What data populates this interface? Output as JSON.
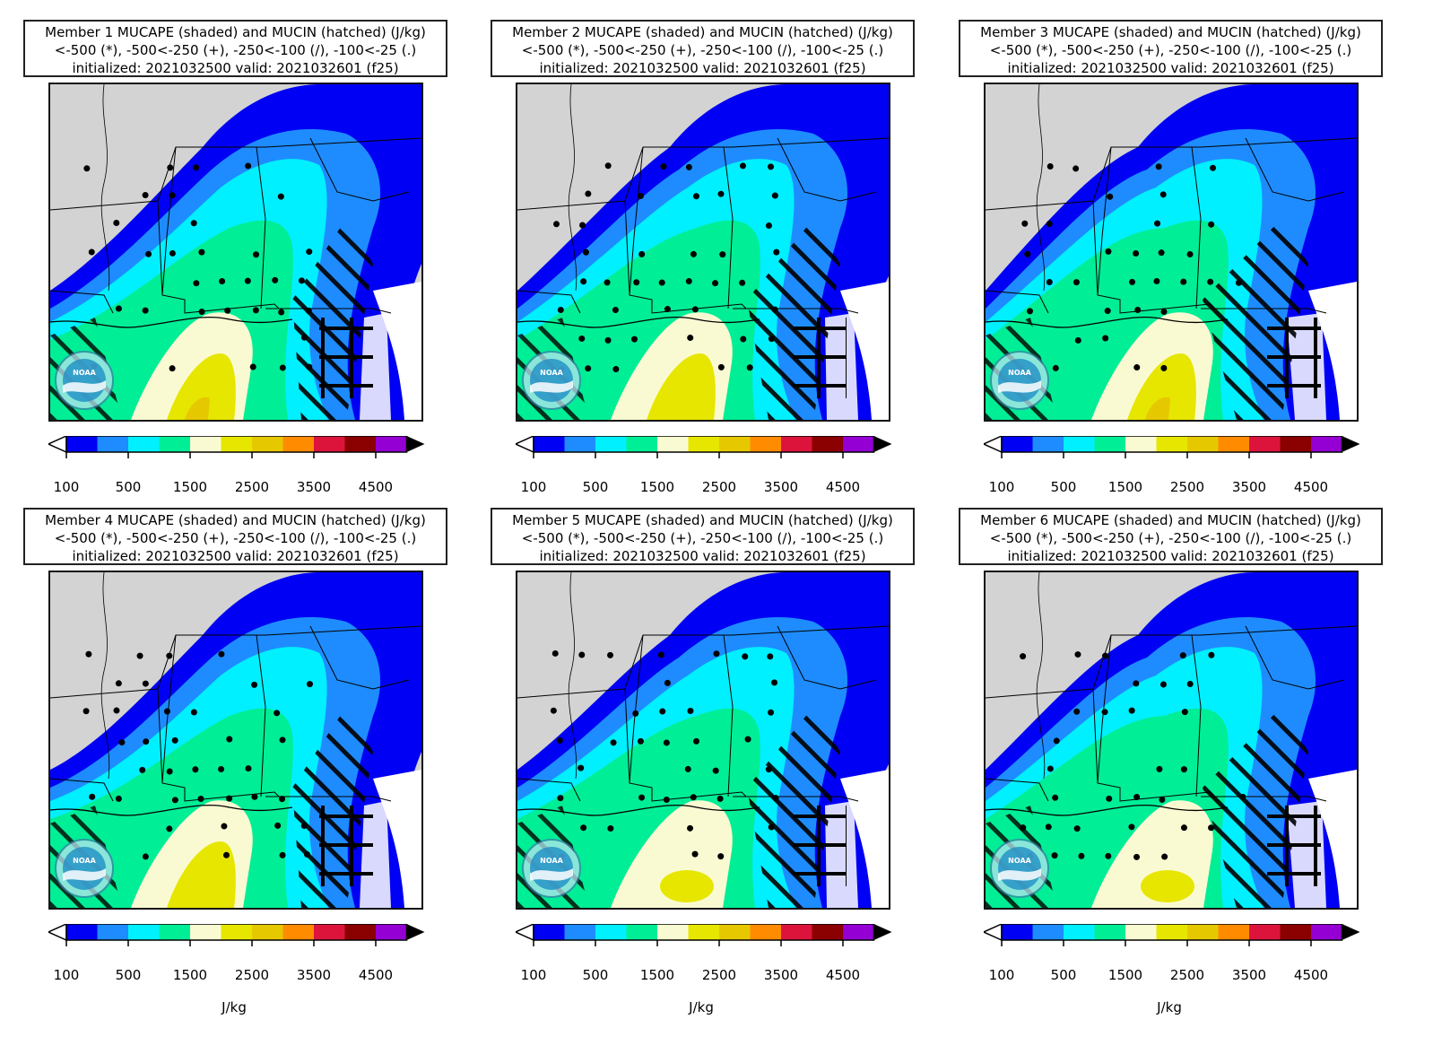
{
  "panels": [
    {
      "member": 1,
      "title_line1": "Member 1 MUCAPE (shaded) and MUCIN (hatched) (J/kg)"
    },
    {
      "member": 2,
      "title_line1": "Member 2 MUCAPE (shaded) and MUCIN (hatched) (J/kg)"
    },
    {
      "member": 3,
      "title_line1": "Member 3 MUCAPE (shaded) and MUCIN (hatched) (J/kg)"
    },
    {
      "member": 4,
      "title_line1": "Member 4 MUCAPE (shaded) and MUCIN (hatched) (J/kg)"
    },
    {
      "member": 5,
      "title_line1": "Member 5 MUCAPE (shaded) and MUCIN (hatched) (J/kg)"
    },
    {
      "member": 6,
      "title_line1": "Member 6 MUCAPE (shaded) and MUCIN (hatched) (J/kg)"
    }
  ],
  "title_line2": "<-500 (*), -500<-250 (+), -250<-100 (/), -100<-25 (.)",
  "title_line3": "initialized: 2021032500 valid: 2021032601 (f25)",
  "colorbar": {
    "tick_labels": [
      "100",
      "500",
      "1500",
      "2500",
      "3500",
      "4500"
    ],
    "colors": [
      "#0000f5",
      "#1e8cff",
      "#00f0ff",
      "#00ee96",
      "#fafad2",
      "#e6e600",
      "#e6c800",
      "#ff8c00",
      "#dc143c",
      "#8b0000",
      "#9400d3"
    ],
    "under_color": "#ffffff",
    "over_color": "#000000"
  },
  "units_label": "J/kg",
  "land_color": "#d3d3d3",
  "logo": "noaa-logo"
}
